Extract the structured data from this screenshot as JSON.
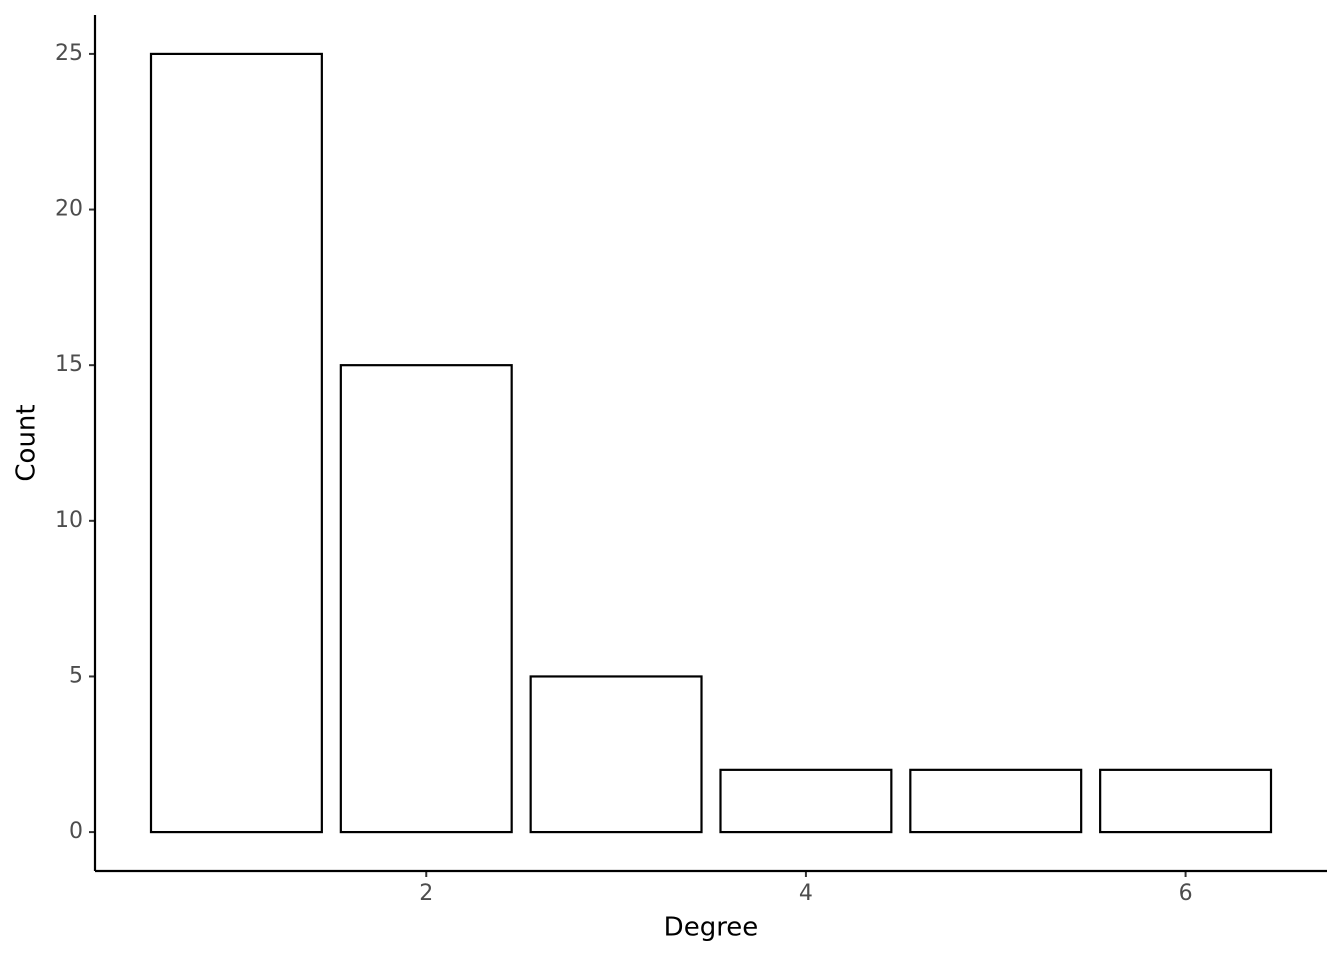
{
  "chart_data": {
    "type": "bar",
    "x_label": "Degree",
    "y_label": "Count",
    "x": [
      1,
      2,
      3,
      4,
      5,
      6
    ],
    "values": [
      25,
      15,
      5,
      2,
      2,
      2
    ],
    "color": "#ffffff",
    "edge_color": "#000000",
    "xlim": [
      0.255,
      6.745
    ],
    "xticks": [
      2,
      4,
      6
    ],
    "ylim": [
      -1.25,
      26.25
    ],
    "yticks": [
      0,
      5,
      10,
      15,
      20,
      25
    ],
    "grid": false
  }
}
